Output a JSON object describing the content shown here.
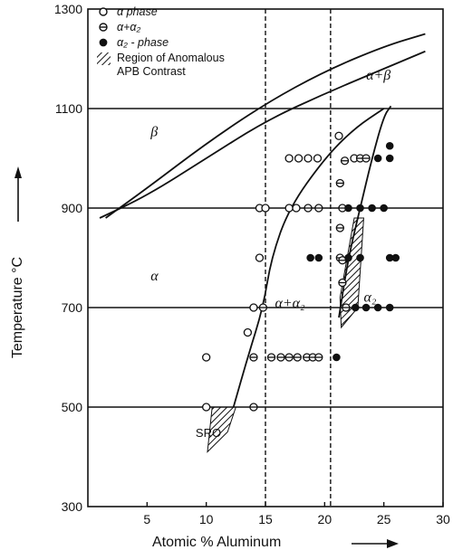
{
  "chart_data": {
    "type": "scatter",
    "xlabel": "Atomic % Aluminum",
    "ylabel": "Temperature °C",
    "xlim": [
      0,
      30
    ],
    "ylim": [
      300,
      1300
    ],
    "x_ticks": [
      5,
      10,
      15,
      20,
      25,
      30
    ],
    "y_ticks": [
      300,
      500,
      700,
      900,
      1100,
      1300
    ],
    "grid": "horizontal lines at 500, 700, 900, 1100; vertical lines at 15 and 20.5",
    "legend": {
      "placement": "top-left",
      "entries": [
        {
          "marker": "open-circle",
          "label": "α phase"
        },
        {
          "marker": "crossed-circle",
          "label": "α+α₂"
        },
        {
          "marker": "filled-circle",
          "label": "α₂ - phase"
        },
        {
          "marker": "hatch",
          "label": "Region of Anomalous",
          "label2": "APB Contrast"
        }
      ]
    },
    "region_labels": [
      {
        "text": "β",
        "x": 5.3,
        "y": 1045
      },
      {
        "text": "α+β",
        "x": 23.5,
        "y": 1158
      },
      {
        "text": "α",
        "x": 5.3,
        "y": 755
      },
      {
        "text": "α+α₂",
        "x": 15.8,
        "y": 700
      },
      {
        "text": "α₂",
        "x": 23.3,
        "y": 712
      },
      {
        "text": "SRO",
        "x": 9.1,
        "y": 440
      }
    ],
    "boundaries": [
      {
        "name": "beta-transus-lower",
        "points": [
          [
            1.0,
            880
          ],
          [
            5,
            925
          ],
          [
            10,
            1000
          ],
          [
            15,
            1075
          ],
          [
            20,
            1130
          ],
          [
            25,
            1180
          ],
          [
            28.5,
            1215
          ]
        ]
      },
      {
        "name": "beta-transus-upper",
        "points": [
          [
            1.5,
            880
          ],
          [
            5,
            940
          ],
          [
            10,
            1030
          ],
          [
            15,
            1110
          ],
          [
            20,
            1175
          ],
          [
            25,
            1225
          ],
          [
            28.5,
            1250
          ]
        ]
      },
      {
        "name": "alpha2-solvus",
        "points": [
          [
            12.3,
            500
          ],
          [
            13.5,
            600
          ],
          [
            14.8,
            700
          ],
          [
            15.5,
            800
          ],
          [
            17,
            900
          ],
          [
            20,
            1000
          ],
          [
            22.5,
            1060
          ],
          [
            25,
            1100
          ]
        ]
      },
      {
        "name": "alpha2-boundary",
        "points": [
          [
            21.2,
            680
          ],
          [
            22,
            800
          ],
          [
            23,
            900
          ],
          [
            24,
            1000
          ],
          [
            25,
            1085
          ],
          [
            25.6,
            1105
          ]
        ]
      }
    ],
    "hatched_regions": [
      {
        "points": [
          [
            10.1,
            410
          ],
          [
            11.8,
            450
          ],
          [
            12.5,
            500
          ],
          [
            10.5,
            500
          ]
        ]
      },
      {
        "points": [
          [
            21.4,
            660
          ],
          [
            22.8,
            700
          ],
          [
            23.3,
            880
          ],
          [
            22.5,
            880
          ],
          [
            21.3,
            720
          ]
        ]
      }
    ],
    "series": [
      {
        "name": "α phase",
        "marker": "open-circle",
        "points": [
          [
            10,
            600
          ],
          [
            10,
            500
          ],
          [
            13.5,
            650
          ],
          [
            14,
            700
          ],
          [
            14.5,
            900
          ],
          [
            14.5,
            800
          ],
          [
            15,
            900
          ],
          [
            17,
            1000
          ],
          [
            17.8,
            1000
          ],
          [
            18.6,
            1000
          ],
          [
            19.4,
            1000
          ],
          [
            17,
            900
          ],
          [
            17.6,
            900
          ],
          [
            21.2,
            1045
          ],
          [
            22.5,
            1000
          ]
        ]
      },
      {
        "name": "α+α₂",
        "marker": "crossed-circle",
        "points": [
          [
            14,
            600
          ],
          [
            14,
            500
          ],
          [
            14.8,
            700
          ],
          [
            15.5,
            600
          ],
          [
            16.3,
            600
          ],
          [
            17,
            600
          ],
          [
            17.7,
            600
          ],
          [
            18.5,
            600
          ],
          [
            19,
            600
          ],
          [
            19.5,
            600
          ],
          [
            21.3,
            950
          ],
          [
            21.3,
            860
          ],
          [
            21.3,
            800
          ],
          [
            21.5,
            750
          ],
          [
            21.8,
            700
          ],
          [
            23,
            1000
          ],
          [
            23.5,
            1000
          ],
          [
            18.6,
            900
          ],
          [
            19.5,
            900
          ],
          [
            21.5,
            900
          ],
          [
            21.7,
            995
          ],
          [
            21.5,
            795
          ]
        ]
      },
      {
        "name": "α₂ - phase",
        "marker": "filled-circle",
        "points": [
          [
            22,
            900
          ],
          [
            23,
            900
          ],
          [
            24,
            900
          ],
          [
            25,
            900
          ],
          [
            24.5,
            1000
          ],
          [
            25.5,
            1000
          ],
          [
            25.5,
            1025
          ],
          [
            18.8,
            800
          ],
          [
            19.5,
            800
          ],
          [
            22,
            800
          ],
          [
            23,
            800
          ],
          [
            25.5,
            800
          ],
          [
            26,
            800
          ],
          [
            22.6,
            700
          ],
          [
            23.5,
            700
          ],
          [
            24.5,
            700
          ],
          [
            25.5,
            700
          ],
          [
            21,
            600
          ]
        ]
      }
    ]
  }
}
